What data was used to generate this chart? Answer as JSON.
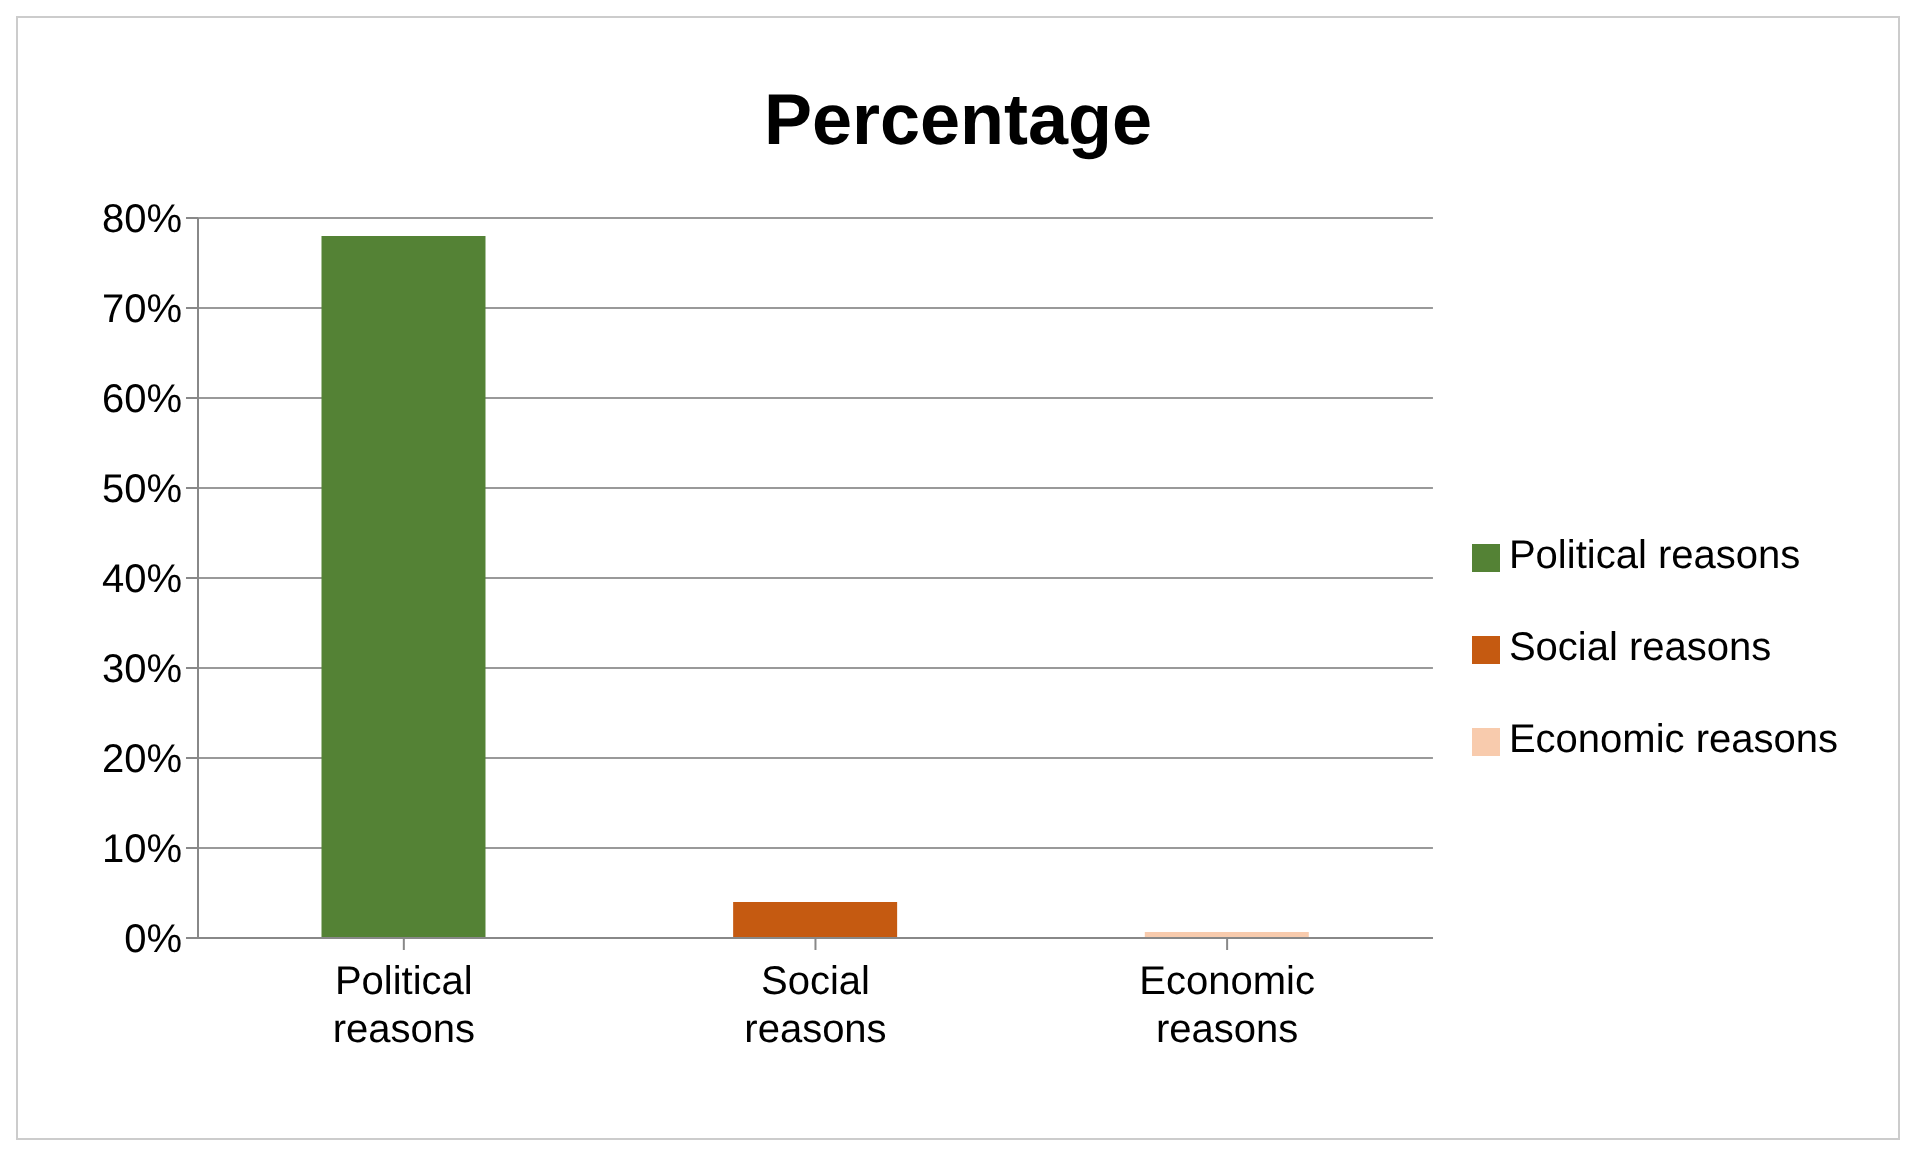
{
  "chart_data": {
    "type": "bar",
    "title": "Percentage",
    "stacked": true,
    "categories": [
      "Political reasons",
      "Social reasons",
      "Economic reasons"
    ],
    "series": [
      {
        "name": "Political reasons",
        "color": "#548235",
        "values": [
          78,
          null,
          null
        ]
      },
      {
        "name": "Social reasons",
        "color": "#c55a11",
        "values": [
          null,
          4,
          null
        ]
      },
      {
        "name": "Economic reasons",
        "color": "#f8cbad",
        "values": [
          null,
          null,
          0
        ]
      }
    ],
    "ylim": [
      0,
      80
    ],
    "yticks": [
      {
        "value": 0,
        "label": "0%"
      },
      {
        "value": 10,
        "label": "10%"
      },
      {
        "value": 20,
        "label": "20%"
      },
      {
        "value": 30,
        "label": "30%"
      },
      {
        "value": 40,
        "label": "40%"
      },
      {
        "value": 50,
        "label": "50%"
      },
      {
        "value": 60,
        "label": "60%"
      },
      {
        "value": 70,
        "label": "70%"
      },
      {
        "value": 80,
        "label": "80%"
      }
    ],
    "grid": "y",
    "legend": "right"
  }
}
